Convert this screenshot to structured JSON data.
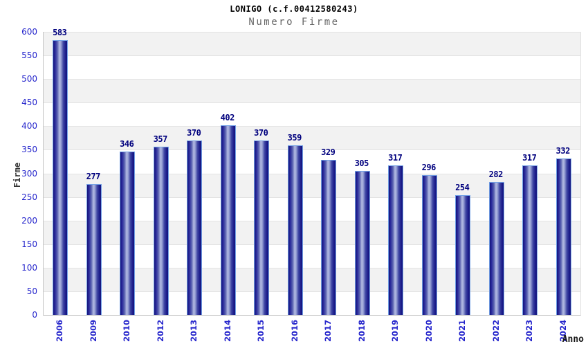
{
  "title": "LONIGO (c.f.00412580243)",
  "subtitle": "Numero Firme",
  "chart_data": {
    "type": "bar",
    "title": "LONIGO (c.f.00412580243)",
    "subtitle": "Numero Firme",
    "categories": [
      "2006",
      "2009",
      "2010",
      "2012",
      "2013",
      "2014",
      "2015",
      "2016",
      "2017",
      "2018",
      "2019",
      "2020",
      "2021",
      "2022",
      "2023",
      "2024"
    ],
    "values": [
      583,
      277,
      346,
      357,
      370,
      402,
      370,
      359,
      329,
      305,
      317,
      296,
      254,
      282,
      317,
      332
    ],
    "xlabel": "Anno",
    "ylabel": "Firme",
    "ylim": [
      0,
      600
    ],
    "ytick_step": 50,
    "yticks": [
      0,
      50,
      100,
      150,
      200,
      250,
      300,
      350,
      400,
      450,
      500,
      550,
      600
    ],
    "grid": "horizontal-alternating-bands",
    "legend": "none",
    "colors": {
      "bar_dark": "#14147a",
      "bar_light": "#b2bae2",
      "bar_border": "#74a2e6",
      "value_label": "#00007e",
      "tick_label": "#2626cc",
      "band_gray": "#f2f2f2",
      "band_white": "#ffffff",
      "gridline": "#e3e3e3",
      "axis_label": "#333333",
      "title_color": "#000000",
      "subtitle_color": "#666666",
      "background": "#ffffff"
    }
  }
}
